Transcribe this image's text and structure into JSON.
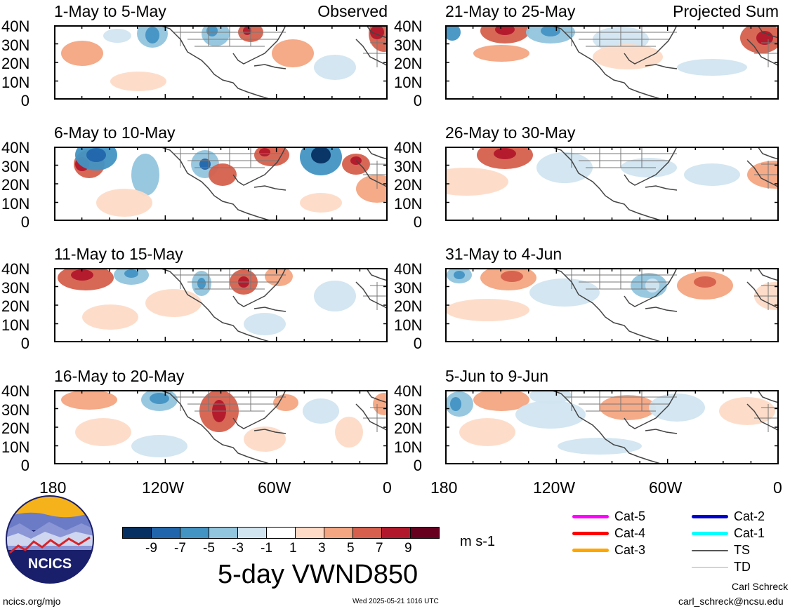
{
  "panels": [
    {
      "title": "1-May to 5-May",
      "right_label": "Observed"
    },
    {
      "title": "6-May to 10-May",
      "right_label": ""
    },
    {
      "title": "11-May to 15-May",
      "right_label": ""
    },
    {
      "title": "16-May to 20-May",
      "right_label": ""
    },
    {
      "title": "21-May to 25-May",
      "right_label": "Projected Sum"
    },
    {
      "title": "26-May to 30-May",
      "right_label": ""
    },
    {
      "title": "31-May to 4-Jun",
      "right_label": ""
    },
    {
      "title": "5-Jun to 9-Jun",
      "right_label": ""
    }
  ],
  "lat_labels": [
    "40N",
    "30N",
    "20N",
    "10N",
    "0"
  ],
  "lon_labels": [
    "180",
    "120W",
    "60W",
    "0"
  ],
  "colorbar": {
    "ticks": [
      "-9",
      "-7",
      "-5",
      "-3",
      "-1",
      "1",
      "3",
      "5",
      "7",
      "9"
    ],
    "colors": [
      "#053061",
      "#2166ac",
      "#4393c3",
      "#92c5de",
      "#d1e5f0",
      "#ffffff",
      "#fddbc7",
      "#f4a582",
      "#d6604d",
      "#b2182b",
      "#67001f"
    ],
    "units": "m s-1"
  },
  "main_title": "5-day VWND850",
  "legend": [
    {
      "label": "Cat-5",
      "color": "#ff00ff"
    },
    {
      "label": "Cat-4",
      "color": "#ff0000"
    },
    {
      "label": "Cat-3",
      "color": "#ffa500"
    },
    {
      "label": "Cat-2",
      "color": "#0000cc"
    },
    {
      "label": "Cat-1",
      "color": "#00ffff"
    },
    {
      "label": "TS",
      "color": "#555555"
    },
    {
      "label": "TD",
      "color": "#aaaaaa"
    }
  ],
  "logo_text": "NCICS",
  "footer": {
    "left": "ncics.org/mjo",
    "center": "Wed 2025-05-21 1016 UTC",
    "author": "Carl Schreck",
    "email": "carl_schreck@ncsu.edu"
  }
}
